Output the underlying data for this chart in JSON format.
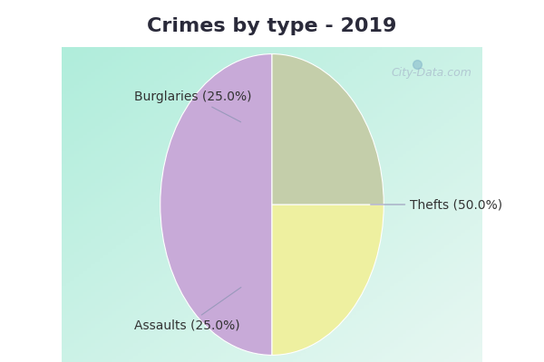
{
  "title": "Crimes by type - 2019",
  "slices": [
    {
      "label": "Thefts (50.0%)",
      "value": 50.0,
      "color": "#c8aad8"
    },
    {
      "label": "Burglaries (25.0%)",
      "value": 25.0,
      "color": "#eef0a0"
    },
    {
      "label": "Assaults (25.0%)",
      "value": 25.0,
      "color": "#c4ceaa"
    }
  ],
  "title_bg_color": "#00e8f8",
  "chart_bg_color": "#c8edd8",
  "title_fontsize": 16,
  "label_fontsize": 10,
  "watermark": "City-Data.com",
  "startangle": 90,
  "title_color": "#2a2a3a"
}
